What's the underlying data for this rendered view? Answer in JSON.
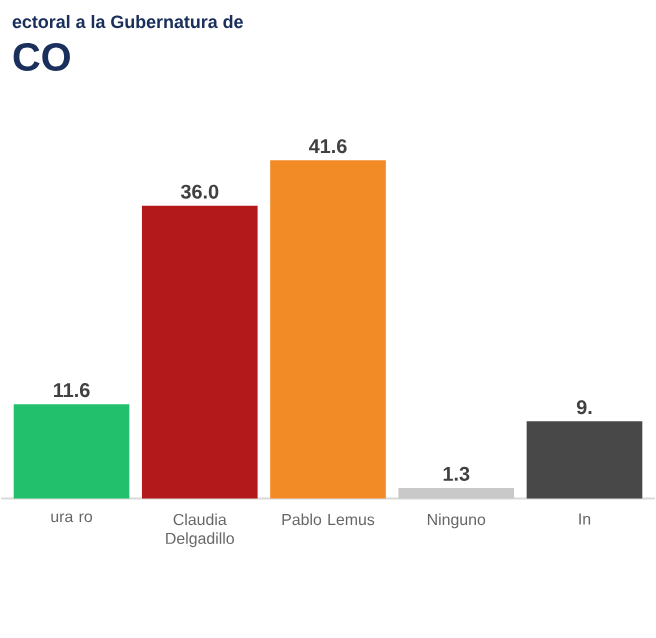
{
  "chart_data": {
    "type": "bar",
    "title": "ectoral a la Gubernatura de",
    "subtitle": "CO",
    "categories": [
      "ura ro",
      "Claudia Delgadillo",
      "Pablo Lemus",
      "Ninguno",
      "In"
    ],
    "values": [
      11.6,
      36.0,
      41.6,
      1.3,
      9.5
    ],
    "value_labels": [
      "11.6",
      "36.0",
      "41.6",
      "1.3",
      "9."
    ],
    "colors": [
      "#22bf6c",
      "#b3181a",
      "#f28a26",
      "#c9c9c9",
      "#484848"
    ]
  }
}
